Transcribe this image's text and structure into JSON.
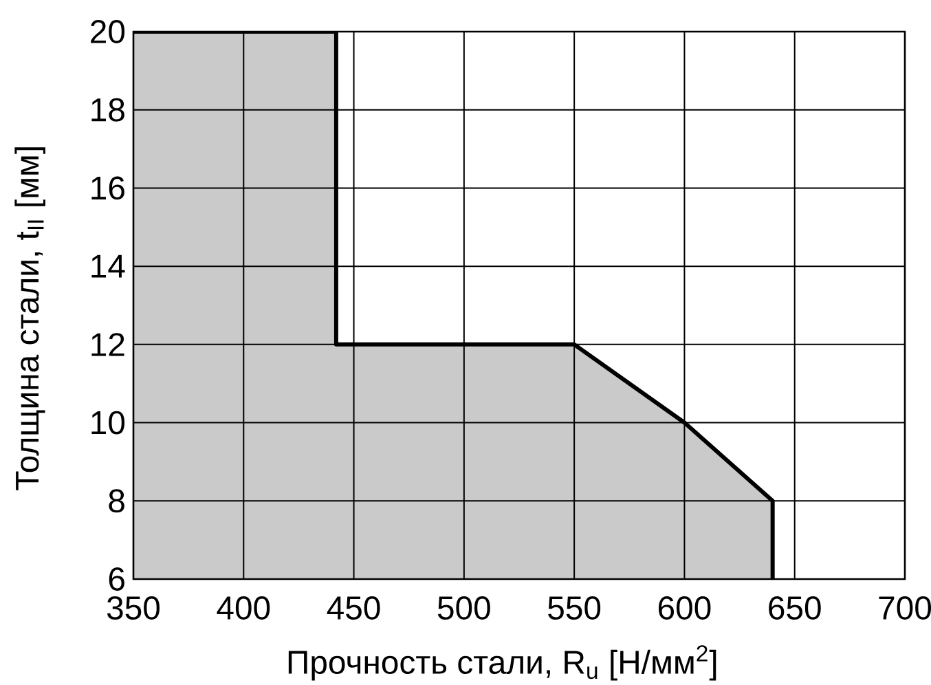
{
  "chart_data": {
    "type": "area",
    "xlabel": "Прочность стали, R$_{u}$ [Н/мм$^{2}$]",
    "ylabel": "Толщина стали, t$_{II}$ [мм]",
    "x": [
      350,
      442,
      442,
      550,
      600,
      640,
      640
    ],
    "values": [
      20,
      20,
      12,
      12,
      10,
      8,
      6
    ],
    "color": "#cacaca",
    "xlim": [
      350,
      700
    ],
    "ylim": [
      6,
      20
    ],
    "xticks": [
      350,
      400,
      450,
      500,
      550,
      600,
      650,
      700
    ],
    "yticks": [
      6,
      8,
      10,
      12,
      14,
      16,
      18,
      20
    ],
    "grid": true
  }
}
